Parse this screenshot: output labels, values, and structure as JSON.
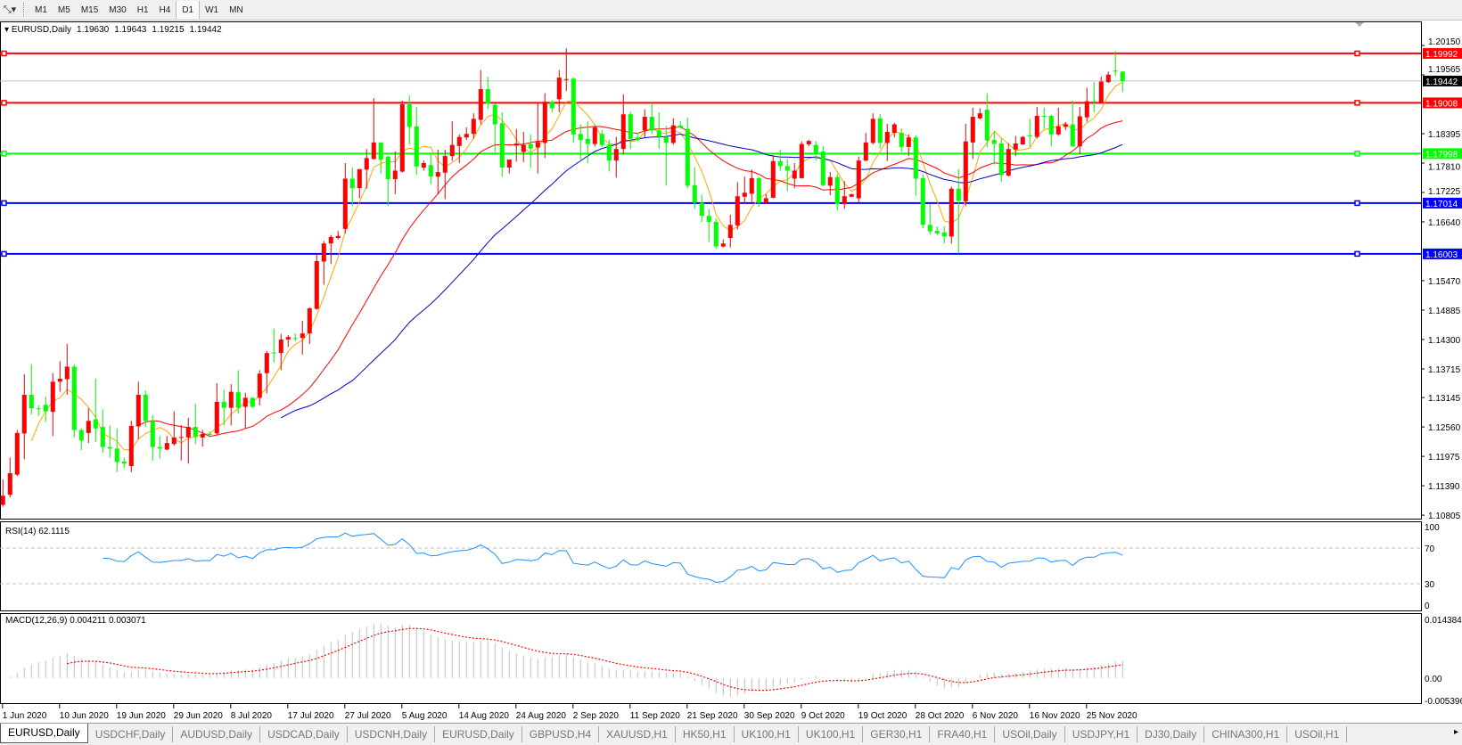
{
  "toolbar": {
    "timeframes": [
      "M1",
      "M5",
      "M15",
      "M30",
      "H1",
      "H4",
      "D1",
      "W1",
      "MN"
    ],
    "active_timeframe": "D1",
    "icons": [
      "crosshair-dropdown-icon",
      "chevron-down-icon"
    ]
  },
  "header": {
    "symbol": "EURUSD,Daily",
    "open": "1.19630",
    "high": "1.19643",
    "low": "1.19215",
    "close": "1.19442"
  },
  "colors": {
    "bull": "#ff0000",
    "bear": "#00ff00",
    "ma_fast": "#ffa500",
    "ma_mid": "#ff0000",
    "ma_slow": "#0000c8",
    "rsi": "#1e90ff",
    "macd_hist": "#c0c0c0",
    "macd_signal": "#ff0000",
    "current_price_label": "#000000"
  },
  "chart_data": {
    "type": "candlestick",
    "symbol": "EURUSD",
    "timeframe": "Daily",
    "ylim": [
      1.10805,
      1.2015
    ],
    "y_ticks": [
      "1.20150",
      "1.19565",
      "1.18395",
      "1.17810",
      "1.17225",
      "1.16640",
      "1.15470",
      "1.14885",
      "1.14300",
      "1.13715",
      "1.13145",
      "1.12560",
      "1.11975",
      "1.11390",
      "1.10805"
    ],
    "date_ticks": [
      {
        "label": "1 Jun 2020",
        "bar": 0
      },
      {
        "label": "10 Jun 2020",
        "bar": 8
      },
      {
        "label": "19 Jun 2020",
        "bar": 16
      },
      {
        "label": "29 Jun 2020",
        "bar": 24
      },
      {
        "label": "8 Jul 2020",
        "bar": 32
      },
      {
        "label": "17 Jul 2020",
        "bar": 40
      },
      {
        "label": "27 Jul 2020",
        "bar": 48
      },
      {
        "label": "5 Aug 2020",
        "bar": 56
      },
      {
        "label": "14 Aug 2020",
        "bar": 64
      },
      {
        "label": "24 Aug 2020",
        "bar": 72
      },
      {
        "label": "2 Sep 2020",
        "bar": 80
      },
      {
        "label": "11 Sep 2020",
        "bar": 88
      },
      {
        "label": "21 Sep 2020",
        "bar": 96
      },
      {
        "label": "30 Sep 2020",
        "bar": 104
      },
      {
        "label": "9 Oct 2020",
        "bar": 112
      },
      {
        "label": "19 Oct 2020",
        "bar": 120
      },
      {
        "label": "28 Oct 2020",
        "bar": 128
      },
      {
        "label": "6 Nov 2020",
        "bar": 136
      },
      {
        "label": "16 Nov 2020",
        "bar": 144
      },
      {
        "label": "25 Nov 2020",
        "bar": 152
      }
    ],
    "current_price": "1.19442",
    "levels": [
      {
        "price": "1.19992",
        "color": "#ff0000"
      },
      {
        "price": "1.19008",
        "color": "#ff0000"
      },
      {
        "price": "1.17998",
        "color": "#00ff00"
      },
      {
        "price": "1.17014",
        "color": "#0000ff"
      },
      {
        "price": "1.16003",
        "color": "#0000ff"
      }
    ],
    "ohlc": [
      [
        1.1101,
        1.1152,
        1.1097,
        1.1119
      ],
      [
        1.1121,
        1.1195,
        1.1116,
        1.1164
      ],
      [
        1.1161,
        1.125,
        1.1158,
        1.1244
      ],
      [
        1.1243,
        1.1361,
        1.1192,
        1.132
      ],
      [
        1.132,
        1.1381,
        1.1281,
        1.1293
      ],
      [
        1.1293,
        1.1299,
        1.1278,
        1.1292
      ],
      [
        1.13,
        1.1317,
        1.1266,
        1.1287
      ],
      [
        1.1286,
        1.1363,
        1.1238,
        1.1346
      ],
      [
        1.1346,
        1.1387,
        1.1326,
        1.1352
      ],
      [
        1.1351,
        1.1421,
        1.132,
        1.1376
      ],
      [
        1.1376,
        1.1381,
        1.1235,
        1.125
      ],
      [
        1.125,
        1.1254,
        1.121,
        1.1229
      ],
      [
        1.1244,
        1.1293,
        1.1224,
        1.1268
      ],
      [
        1.1271,
        1.1352,
        1.1226,
        1.1253
      ],
      [
        1.1256,
        1.1291,
        1.1204,
        1.1216
      ],
      [
        1.1216,
        1.1259,
        1.1195,
        1.1213
      ],
      [
        1.1213,
        1.1253,
        1.1166,
        1.1186
      ],
      [
        1.1187,
        1.1195,
        1.1174,
        1.1183
      ],
      [
        1.1178,
        1.1268,
        1.1166,
        1.1258
      ],
      [
        1.1257,
        1.1346,
        1.1232,
        1.132
      ],
      [
        1.132,
        1.1329,
        1.1256,
        1.1268
      ],
      [
        1.1268,
        1.1279,
        1.1189,
        1.1216
      ],
      [
        1.1216,
        1.1238,
        1.1193,
        1.1213
      ],
      [
        1.1211,
        1.1238,
        1.121,
        1.1224
      ],
      [
        1.1222,
        1.1287,
        1.1219,
        1.1235
      ],
      [
        1.1235,
        1.126,
        1.1189,
        1.1236
      ],
      [
        1.1235,
        1.1274,
        1.1183,
        1.1256
      ],
      [
        1.1256,
        1.1302,
        1.1222,
        1.1236
      ],
      [
        1.1235,
        1.125,
        1.1217,
        1.1242
      ],
      [
        1.1242,
        1.1247,
        1.1235,
        1.1241
      ],
      [
        1.1243,
        1.1343,
        1.1241,
        1.1306
      ],
      [
        1.1306,
        1.133,
        1.1259,
        1.1294
      ],
      [
        1.1294,
        1.1341,
        1.1259,
        1.1326
      ],
      [
        1.1325,
        1.1369,
        1.1283,
        1.1294
      ],
      [
        1.1296,
        1.1324,
        1.1253,
        1.1314
      ],
      [
        1.1314,
        1.1315,
        1.1293,
        1.1296
      ],
      [
        1.1314,
        1.1369,
        1.1299,
        1.1362
      ],
      [
        1.1363,
        1.1407,
        1.1323,
        1.1403
      ],
      [
        1.1404,
        1.1452,
        1.1384,
        1.1403
      ],
      [
        1.1403,
        1.1441,
        1.1369,
        1.143
      ],
      [
        1.143,
        1.1439,
        1.1415,
        1.1435
      ],
      [
        1.1433,
        1.1442,
        1.1427,
        1.1432
      ],
      [
        1.1433,
        1.1467,
        1.14,
        1.1442
      ],
      [
        1.1442,
        1.1494,
        1.1421,
        1.1492
      ],
      [
        1.1491,
        1.16,
        1.1489,
        1.1586
      ],
      [
        1.1585,
        1.1626,
        1.1539,
        1.1621
      ],
      [
        1.1621,
        1.1638,
        1.158,
        1.1634
      ],
      [
        1.1632,
        1.1646,
        1.1629,
        1.1636
      ],
      [
        1.165,
        1.1781,
        1.1641,
        1.175
      ],
      [
        1.175,
        1.1772,
        1.1696,
        1.1731
      ],
      [
        1.1731,
        1.1769,
        1.1711,
        1.1769
      ],
      [
        1.1768,
        1.1809,
        1.173,
        1.1791
      ],
      [
        1.1789,
        1.191,
        1.1788,
        1.1822
      ],
      [
        1.1822,
        1.1822,
        1.176,
        1.1788
      ],
      [
        1.1794,
        1.1795,
        1.1696,
        1.1749
      ],
      [
        1.1749,
        1.1804,
        1.1719,
        1.1766
      ],
      [
        1.1764,
        1.1905,
        1.1762,
        1.1898
      ],
      [
        1.1898,
        1.1916,
        1.1818,
        1.1853
      ],
      [
        1.1854,
        1.1893,
        1.1757,
        1.1774
      ],
      [
        1.1772,
        1.1786,
        1.1766,
        1.1781
      ],
      [
        1.1777,
        1.18,
        1.1739,
        1.1754
      ],
      [
        1.1754,
        1.1808,
        1.1719,
        1.1763
      ],
      [
        1.1762,
        1.1808,
        1.1709,
        1.1795
      ],
      [
        1.1795,
        1.1864,
        1.1785,
        1.1817
      ],
      [
        1.1815,
        1.1838,
        1.1781,
        1.1833
      ],
      [
        1.1832,
        1.1852,
        1.1827,
        1.1839
      ],
      [
        1.1839,
        1.188,
        1.183,
        1.1869
      ],
      [
        1.1867,
        1.1966,
        1.1858,
        1.1928
      ],
      [
        1.1928,
        1.1953,
        1.1888,
        1.1899
      ],
      [
        1.1897,
        1.1899,
        1.1803,
        1.1858
      ],
      [
        1.186,
        1.1882,
        1.1754,
        1.1772
      ],
      [
        1.1772,
        1.1788,
        1.176,
        1.1788
      ],
      [
        1.1816,
        1.1849,
        1.1784,
        1.182
      ],
      [
        1.1803,
        1.1843,
        1.1783,
        1.1817
      ],
      [
        1.1819,
        1.1838,
        1.1771,
        1.181
      ],
      [
        1.1812,
        1.1902,
        1.176,
        1.1823
      ],
      [
        1.1821,
        1.192,
        1.1791,
        1.1903
      ],
      [
        1.1903,
        1.1906,
        1.1882,
        1.189
      ],
      [
        1.1908,
        1.1966,
        1.1882,
        1.1951
      ],
      [
        1.1948,
        1.2009,
        1.1924,
        1.1948
      ],
      [
        1.1949,
        1.1952,
        1.1821,
        1.1838
      ],
      [
        1.1839,
        1.1858,
        1.1788,
        1.1827
      ],
      [
        1.1829,
        1.1864,
        1.1781,
        1.1819
      ],
      [
        1.1819,
        1.1855,
        1.1814,
        1.1852
      ],
      [
        1.1839,
        1.1847,
        1.1812,
        1.1817
      ],
      [
        1.1818,
        1.1827,
        1.1764,
        1.1786
      ],
      [
        1.1786,
        1.1833,
        1.1752,
        1.1809
      ],
      [
        1.1809,
        1.1918,
        1.1798,
        1.1878
      ],
      [
        1.1878,
        1.1883,
        1.1809,
        1.1829
      ],
      [
        1.1832,
        1.1841,
        1.1825,
        1.1827
      ],
      [
        1.1846,
        1.1888,
        1.1832,
        1.1873
      ],
      [
        1.1873,
        1.19,
        1.1839,
        1.1846
      ],
      [
        1.1846,
        1.1882,
        1.1809,
        1.1833
      ],
      [
        1.1833,
        1.1855,
        1.1736,
        1.1821
      ],
      [
        1.1821,
        1.187,
        1.1817,
        1.1856
      ],
      [
        1.1856,
        1.1865,
        1.1849,
        1.1852
      ],
      [
        1.1849,
        1.1871,
        1.1731,
        1.1736
      ],
      [
        1.1737,
        1.1773,
        1.169,
        1.1702
      ],
      [
        1.1702,
        1.1718,
        1.1664,
        1.1676
      ],
      [
        1.1676,
        1.169,
        1.1624,
        1.1664
      ],
      [
        1.1664,
        1.1671,
        1.161,
        1.1615
      ],
      [
        1.1615,
        1.1629,
        1.1613,
        1.1621
      ],
      [
        1.1632,
        1.1678,
        1.1613,
        1.1658
      ],
      [
        1.1657,
        1.1743,
        1.1649,
        1.1715
      ],
      [
        1.1714,
        1.1754,
        1.17,
        1.1722
      ],
      [
        1.172,
        1.1768,
        1.1702,
        1.1751
      ],
      [
        1.1751,
        1.1754,
        1.1694,
        1.1702
      ],
      [
        1.1702,
        1.1719,
        1.17,
        1.1711
      ],
      [
        1.1712,
        1.1797,
        1.1711,
        1.1785
      ],
      [
        1.1785,
        1.1808,
        1.1766,
        1.1775
      ],
      [
        1.1775,
        1.1789,
        1.1725,
        1.1766
      ],
      [
        1.175,
        1.1781,
        1.1731,
        1.1766
      ],
      [
        1.1751,
        1.1824,
        1.175,
        1.1819
      ],
      [
        1.1818,
        1.1827,
        1.1814,
        1.1825
      ],
      [
        1.1817,
        1.1825,
        1.1786,
        1.18
      ],
      [
        1.1804,
        1.1815,
        1.1734,
        1.1737
      ],
      [
        1.1736,
        1.1763,
        1.1717,
        1.1753
      ],
      [
        1.1753,
        1.1759,
        1.1687,
        1.1699
      ],
      [
        1.1699,
        1.1745,
        1.169,
        1.1715
      ],
      [
        1.1714,
        1.172,
        1.1713,
        1.1719
      ],
      [
        1.1711,
        1.1794,
        1.1703,
        1.1786
      ],
      [
        1.1786,
        1.1841,
        1.1784,
        1.1822
      ],
      [
        1.1821,
        1.188,
        1.1818,
        1.1869
      ],
      [
        1.187,
        1.1879,
        1.181,
        1.1821
      ],
      [
        1.1821,
        1.1859,
        1.1785,
        1.1843
      ],
      [
        1.1841,
        1.1861,
        1.1832,
        1.1858
      ],
      [
        1.1841,
        1.185,
        1.1803,
        1.1813
      ],
      [
        1.1813,
        1.1838,
        1.1795,
        1.1832
      ],
      [
        1.1832,
        1.1836,
        1.1716,
        1.175
      ],
      [
        1.1751,
        1.1759,
        1.1651,
        1.1658
      ],
      [
        1.1658,
        1.17,
        1.1639,
        1.1645
      ],
      [
        1.1646,
        1.1655,
        1.1638,
        1.1641
      ],
      [
        1.1643,
        1.1655,
        1.1621,
        1.1635
      ],
      [
        1.1635,
        1.1734,
        1.1621,
        1.173
      ],
      [
        1.173,
        1.1769,
        1.1601,
        1.1706
      ],
      [
        1.1705,
        1.1859,
        1.1695,
        1.1824
      ],
      [
        1.1822,
        1.1891,
        1.1789,
        1.1873
      ],
      [
        1.187,
        1.189,
        1.1868,
        1.188
      ],
      [
        1.1887,
        1.192,
        1.1812,
        1.1826
      ],
      [
        1.1827,
        1.1844,
        1.1778,
        1.1819
      ],
      [
        1.182,
        1.183,
        1.1743,
        1.1757
      ],
      [
        1.1756,
        1.1821,
        1.1754,
        1.1809
      ],
      [
        1.1808,
        1.1835,
        1.1795,
        1.182
      ],
      [
        1.1818,
        1.1835,
        1.1817,
        1.1833
      ],
      [
        1.1836,
        1.1869,
        1.1812,
        1.1835
      ],
      [
        1.1833,
        1.1893,
        1.183,
        1.1875
      ],
      [
        1.1875,
        1.1891,
        1.1849,
        1.1874
      ],
      [
        1.1875,
        1.1877,
        1.1814,
        1.1838
      ],
      [
        1.1838,
        1.1891,
        1.1835,
        1.1854
      ],
      [
        1.1853,
        1.1863,
        1.1847,
        1.1858
      ],
      [
        1.1858,
        1.1905,
        1.1814,
        1.1814
      ],
      [
        1.1814,
        1.1893,
        1.1798,
        1.1874
      ],
      [
        1.1872,
        1.1931,
        1.1863,
        1.1904
      ],
      [
        1.1904,
        1.1942,
        1.1882,
        1.1903
      ],
      [
        1.1902,
        1.1953,
        1.1901,
        1.1943
      ],
      [
        1.1942,
        1.1963,
        1.194,
        1.1957
      ],
      [
        1.1965,
        1.2004,
        1.1954,
        1.1963
      ],
      [
        1.1963,
        1.1964,
        1.1922,
        1.1944
      ]
    ],
    "rsi": {
      "label": "RSI(14) 62.1115",
      "ticks": [
        "100",
        "70",
        "30",
        "0"
      ],
      "levels": [
        70,
        30
      ],
      "ylim": [
        0,
        100
      ]
    },
    "macd": {
      "label": "MACD(12,26,9) 0.004211 0.003071",
      "ticks": [
        "0.014384",
        "0.00",
        "-0.005396"
      ],
      "ylim": [
        -0.005396,
        0.014384
      ]
    }
  },
  "tabs": {
    "items": [
      "EURUSD,Daily",
      "USDCHF,Daily",
      "AUDUSD,Daily",
      "USDCAD,Daily",
      "USDCNH,Daily",
      "EURUSD,Daily",
      "GBPUSD,H4",
      "XAUUSD,H1",
      "HK50,H1",
      "UK100,H1",
      "UK100,H1",
      "GER30,H1",
      "FRA40,H1",
      "USOil,Daily",
      "USDJPY,H1",
      "DJ30,Daily",
      "CHINA300,H1",
      "USOil,H1"
    ],
    "active": 0,
    "scroll_right": "▸"
  }
}
